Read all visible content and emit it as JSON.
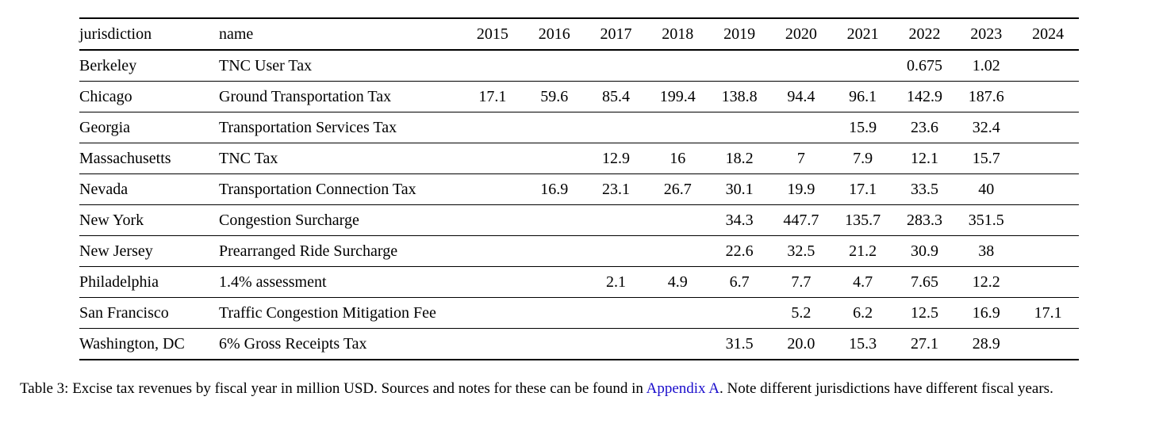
{
  "table": {
    "headers": [
      "jurisdiction",
      "name",
      "2015",
      "2016",
      "2017",
      "2018",
      "2019",
      "2020",
      "2021",
      "2022",
      "2023",
      "2024"
    ],
    "rows": [
      [
        "Berkeley",
        "TNC User Tax",
        "",
        "",
        "",
        "",
        "",
        "",
        "",
        "0.675",
        "1.02",
        ""
      ],
      [
        "Chicago",
        "Ground Transportation Tax",
        "17.1",
        "59.6",
        "85.4",
        "199.4",
        "138.8",
        "94.4",
        "96.1",
        "142.9",
        "187.6",
        ""
      ],
      [
        "Georgia",
        "Transportation Services Tax",
        "",
        "",
        "",
        "",
        "",
        "",
        "15.9",
        "23.6",
        "32.4",
        ""
      ],
      [
        "Massachusetts",
        "TNC Tax",
        "",
        "",
        "12.9",
        "16",
        "18.2",
        "7",
        "7.9",
        "12.1",
        "15.7",
        ""
      ],
      [
        "Nevada",
        "Transportation Connection Tax",
        "",
        "16.9",
        "23.1",
        "26.7",
        "30.1",
        "19.9",
        "17.1",
        "33.5",
        "40",
        ""
      ],
      [
        "New York",
        "Congestion Surcharge",
        "",
        "",
        "",
        "",
        "34.3",
        "447.7",
        "135.7",
        "283.3",
        "351.5",
        ""
      ],
      [
        "New Jersey",
        "Prearranged Ride Surcharge",
        "",
        "",
        "",
        "",
        "22.6",
        "32.5",
        "21.2",
        "30.9",
        "38",
        ""
      ],
      [
        "Philadelphia",
        "1.4% assessment",
        "",
        "",
        "2.1",
        "4.9",
        "6.7",
        "7.7",
        "4.7",
        "7.65",
        "12.2",
        ""
      ],
      [
        "San Francisco",
        "Traffic Congestion Mitigation Fee",
        "",
        "",
        "",
        "",
        "",
        "5.2",
        "6.2",
        "12.5",
        "16.9",
        "17.1"
      ],
      [
        "Washington, DC",
        "6% Gross Receipts Tax",
        "",
        "",
        "",
        "",
        "31.5",
        "20.0",
        "15.3",
        "27.1",
        "28.9",
        ""
      ]
    ]
  },
  "caption": {
    "prefix": "Table 3:  Excise tax revenues by fiscal year in million USD. Sources and notes for these can be found in ",
    "link_text": "Appendix  A",
    "suffix": ". Note different jurisdictions have different fiscal years."
  },
  "colors": {
    "link": "#1a0dcc",
    "text": "#000000"
  }
}
